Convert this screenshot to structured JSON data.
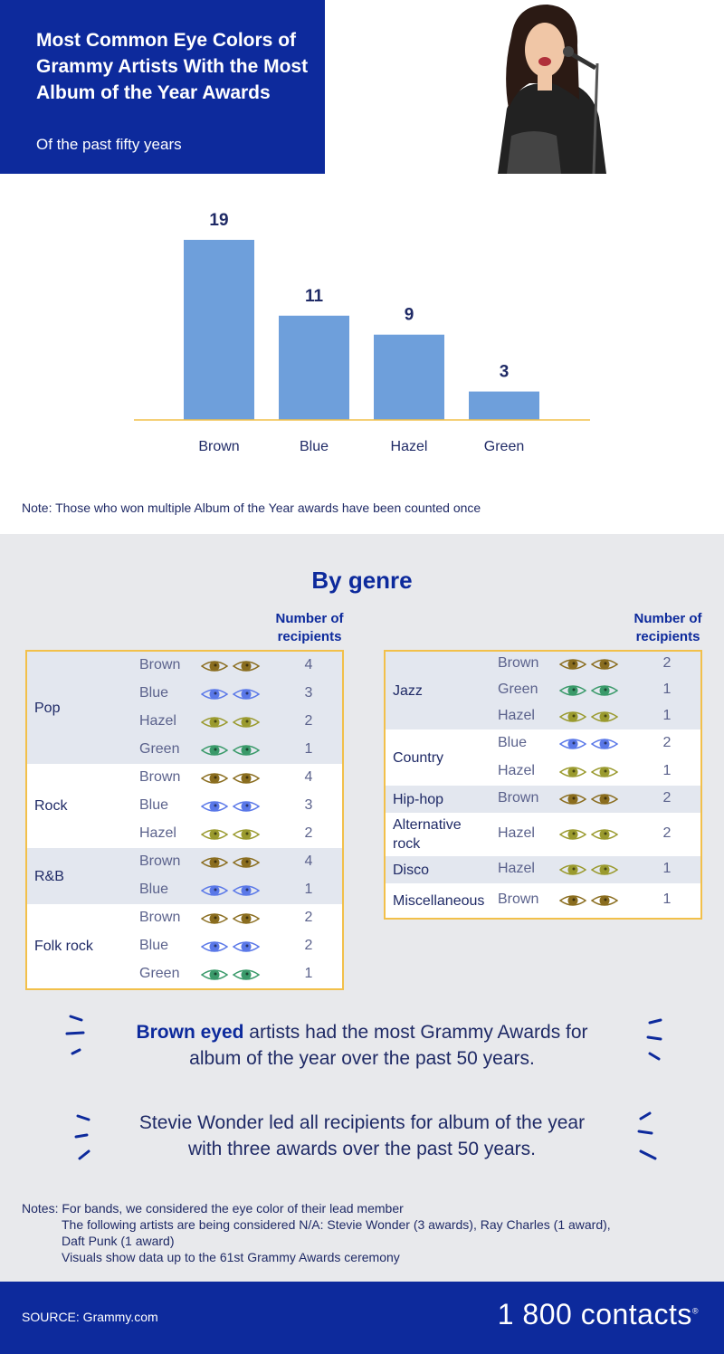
{
  "header": {
    "title": "Most Common Eye Colors of Grammy Artists With the Most Album of the Year Awards",
    "subtitle": "Of the past fifty years"
  },
  "colors": {
    "navy": "#0d2a9c",
    "bar": "#6e9fdb",
    "axis": "#f2c04a",
    "eye_brown": "#8a6d1f",
    "eye_blue": "#5a78e8",
    "eye_hazel": "#9a9a2e",
    "eye_green": "#3a9a6a"
  },
  "chart_data": {
    "type": "bar",
    "categories": [
      "Brown",
      "Blue",
      "Hazel",
      "Green"
    ],
    "values": [
      19,
      11,
      9,
      3
    ],
    "title": "",
    "xlabel": "",
    "ylabel": "",
    "ylim": [
      0,
      19
    ]
  },
  "note": "Note: Those who won multiple Album of the Year awards have been counted once",
  "genre": {
    "title": "By genre",
    "recipients_header_line1": "Number of",
    "recipients_header_line2": "recipients",
    "left": [
      {
        "genre": "Pop",
        "rows": [
          {
            "color": "Brown",
            "eye": "eye_brown",
            "n": "4"
          },
          {
            "color": "Blue",
            "eye": "eye_blue",
            "n": "3"
          },
          {
            "color": "Hazel",
            "eye": "eye_hazel",
            "n": "2"
          },
          {
            "color": "Green",
            "eye": "eye_green",
            "n": "1"
          }
        ]
      },
      {
        "genre": "Rock",
        "rows": [
          {
            "color": "Brown",
            "eye": "eye_brown",
            "n": "4"
          },
          {
            "color": "Blue",
            "eye": "eye_blue",
            "n": "3"
          },
          {
            "color": "Hazel",
            "eye": "eye_hazel",
            "n": "2"
          }
        ]
      },
      {
        "genre": "R&B",
        "rows": [
          {
            "color": "Brown",
            "eye": "eye_brown",
            "n": "4"
          },
          {
            "color": "Blue",
            "eye": "eye_blue",
            "n": "1"
          }
        ]
      },
      {
        "genre": "Folk rock",
        "rows": [
          {
            "color": "Brown",
            "eye": "eye_brown",
            "n": "2"
          },
          {
            "color": "Blue",
            "eye": "eye_blue",
            "n": "2"
          },
          {
            "color": "Green",
            "eye": "eye_green",
            "n": "1"
          }
        ]
      }
    ],
    "right": [
      {
        "genre": "Jazz",
        "rows": [
          {
            "color": "Brown",
            "eye": "eye_brown",
            "n": "2"
          },
          {
            "color": "Green",
            "eye": "eye_green",
            "n": "1"
          },
          {
            "color": "Hazel",
            "eye": "eye_hazel",
            "n": "1"
          }
        ]
      },
      {
        "genre": "Country",
        "rows": [
          {
            "color": "Blue",
            "eye": "eye_blue",
            "n": "2"
          },
          {
            "color": "Hazel",
            "eye": "eye_hazel",
            "n": "1"
          }
        ]
      },
      {
        "genre": "Hip-hop",
        "rows": [
          {
            "color": "Brown",
            "eye": "eye_brown",
            "n": "2"
          }
        ]
      },
      {
        "genre": "Alternative rock",
        "rows": [
          {
            "color": "Hazel",
            "eye": "eye_hazel",
            "n": "2"
          }
        ]
      },
      {
        "genre": "Disco",
        "rows": [
          {
            "color": "Hazel",
            "eye": "eye_hazel",
            "n": "1"
          }
        ]
      },
      {
        "genre": "Miscellaneous",
        "rows": [
          {
            "color": "Brown",
            "eye": "eye_brown",
            "n": "1"
          }
        ]
      }
    ]
  },
  "quotes": {
    "q1_bold": "Brown eyed",
    "q1_rest": " artists had the most Grammy Awards for",
    "q1_line2": "album of the year over the past 50 years.",
    "q2_line1": "Stevie Wonder led all recipients for album of the year",
    "q2_line2": "with three awards over the past 50 years."
  },
  "notes": {
    "line1": "Notes: For bands, we considered the eye color of their lead member",
    "line2": "The following artists are being considered N/A: Stevie Wonder (3 awards), Ray Charles (1 award),",
    "line3": "Daft Punk (1 award)",
    "line4": "Visuals show data up to the 61st Grammy Awards ceremony"
  },
  "footer": {
    "source": "SOURCE: Grammy.com",
    "logo": "1 800 contacts",
    "logo_mark": "®"
  }
}
